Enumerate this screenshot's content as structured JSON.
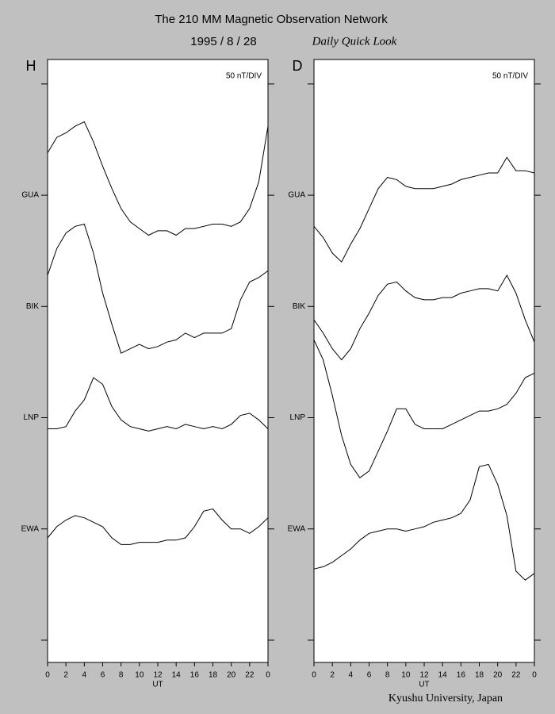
{
  "header": {
    "title": "The 210 MM Magnetic Observation Network",
    "date": "1995  /   8  /  28",
    "subtitle": "Daily Quick Look"
  },
  "footer": "Kyushu University, Japan",
  "chart_data": [
    {
      "type": "line",
      "panel_label": "H",
      "scale_label": "50 nT/DIV",
      "xlabel": "UT",
      "x": [
        0,
        1,
        2,
        3,
        4,
        5,
        6,
        7,
        8,
        9,
        10,
        11,
        12,
        13,
        14,
        15,
        16,
        17,
        18,
        19,
        20,
        21,
        22,
        23,
        24
      ],
      "xlim": [
        0,
        24
      ],
      "xticks": [
        0,
        2,
        4,
        6,
        8,
        10,
        12,
        14,
        16,
        18,
        20,
        22,
        {
          "value": 24,
          "label": "0"
        }
      ],
      "ylim": [
        -10,
        261
      ],
      "yticks": [
        {
          "value": 0,
          "label": null
        },
        {
          "value": 50,
          "label": "EWA"
        },
        {
          "value": 100,
          "label": "LNP"
        },
        {
          "value": 150,
          "label": "BIK"
        },
        {
          "value": 200,
          "label": "GUA"
        },
        {
          "value": 250,
          "label": null
        }
      ],
      "series": [
        {
          "color": "#000000",
          "values": [
            219,
            226,
            228,
            231,
            233,
            224,
            213,
            203,
            194,
            188,
            185,
            182,
            184,
            184,
            182,
            185,
            185,
            186,
            187,
            187,
            186,
            188,
            194,
            206,
            231
          ]
        },
        {
          "color": "#000000",
          "values": [
            164,
            176,
            183,
            186,
            187,
            174,
            156,
            142,
            129,
            131,
            133,
            131,
            132,
            134,
            135,
            138,
            136,
            138,
            138,
            138,
            140,
            153,
            161,
            163,
            166
          ]
        },
        {
          "color": "#000000",
          "values": [
            95,
            95,
            96,
            103,
            108,
            118,
            115,
            105,
            99,
            96,
            95,
            94,
            95,
            96,
            95,
            97,
            96,
            95,
            96,
            95,
            97,
            101,
            102,
            99,
            95
          ]
        },
        {
          "color": "#000000",
          "values": [
            46,
            51,
            54,
            56,
            55,
            53,
            51,
            46,
            43,
            43,
            44,
            44,
            44,
            45,
            45,
            46,
            51,
            58,
            59,
            54,
            50,
            50,
            48,
            51,
            55
          ]
        }
      ]
    },
    {
      "type": "line",
      "panel_label": "D",
      "scale_label": "50 nT/DIV",
      "xlabel": "UT",
      "x": [
        0,
        1,
        2,
        3,
        4,
        5,
        6,
        7,
        8,
        9,
        10,
        11,
        12,
        13,
        14,
        15,
        16,
        17,
        18,
        19,
        20,
        21,
        22,
        23,
        24
      ],
      "xlim": [
        0,
        24
      ],
      "xticks": [
        0,
        2,
        4,
        6,
        8,
        10,
        12,
        14,
        16,
        18,
        20,
        22,
        {
          "value": 24,
          "label": "0"
        }
      ],
      "ylim": [
        -10,
        261
      ],
      "yticks": [
        {
          "value": 0,
          "label": null
        },
        {
          "value": 50,
          "label": "EWA"
        },
        {
          "value": 100,
          "label": "LNP"
        },
        {
          "value": 150,
          "label": "BIK"
        },
        {
          "value": 200,
          "label": "GUA"
        },
        {
          "value": 250,
          "label": null
        }
      ],
      "series": [
        {
          "color": "#000000",
          "values": [
            186,
            181,
            174,
            170,
            178,
            185,
            194,
            203,
            208,
            207,
            204,
            203,
            203,
            203,
            204,
            205,
            207,
            208,
            209,
            210,
            210,
            217,
            211,
            211,
            210
          ]
        },
        {
          "color": "#000000",
          "values": [
            144,
            138,
            131,
            126,
            131,
            140,
            147,
            155,
            160,
            161,
            157,
            154,
            153,
            153,
            154,
            154,
            156,
            157,
            158,
            158,
            157,
            164,
            156,
            144,
            134
          ]
        },
        {
          "color": "#000000",
          "values": [
            135,
            126,
            110,
            92,
            79,
            73,
            76,
            85,
            94,
            104,
            104,
            97,
            95,
            95,
            95,
            97,
            99,
            101,
            103,
            103,
            104,
            106,
            111,
            118,
            120
          ]
        },
        {
          "color": "#000000",
          "values": [
            32,
            33,
            35,
            38,
            41,
            45,
            48,
            49,
            50,
            50,
            49,
            50,
            51,
            53,
            54,
            55,
            57,
            63,
            78,
            79,
            70,
            56,
            31,
            27,
            30
          ]
        }
      ]
    }
  ]
}
